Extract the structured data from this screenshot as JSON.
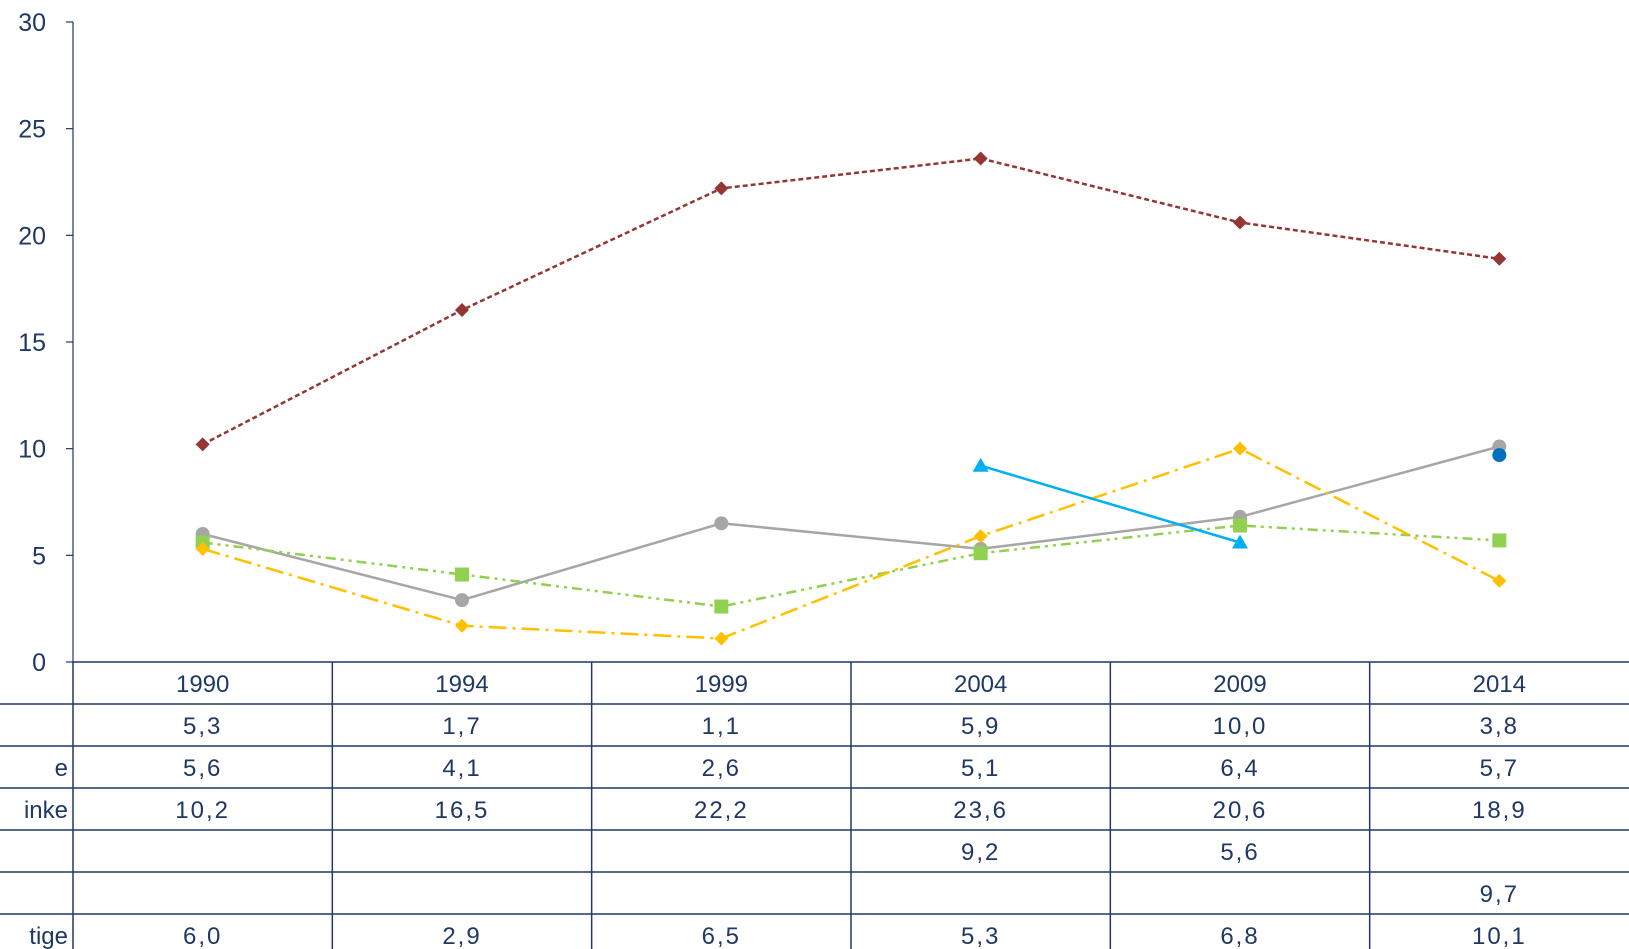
{
  "chart_data": {
    "type": "line",
    "categories": [
      "1990",
      "1994",
      "1999",
      "2004",
      "2009",
      "2014"
    ],
    "ylim": [
      0,
      30
    ],
    "yticks": [
      "0",
      "5",
      "10",
      "15",
      "20",
      "25",
      "30"
    ],
    "grid": false,
    "legend": "data table below chart",
    "series": [
      {
        "label": "",
        "values": [
          5.3,
          1.7,
          1.1,
          5.9,
          10.0,
          3.8
        ],
        "cells": [
          "5,3",
          "1,7",
          "1,1",
          "5,9",
          "10,0",
          "3,8"
        ],
        "color": "#FFC000",
        "marker": "diamond",
        "dash": "long-dash-dot"
      },
      {
        "label": "e",
        "values": [
          5.6,
          4.1,
          2.6,
          5.1,
          6.4,
          5.7
        ],
        "cells": [
          "5,6",
          "4,1",
          "2,6",
          "5,1",
          "6,4",
          "5,7"
        ],
        "color": "#92D050",
        "marker": "square",
        "dash": "dash-dot-dot"
      },
      {
        "label": "inke",
        "values": [
          10.2,
          16.5,
          22.2,
          23.6,
          20.6,
          18.9
        ],
        "cells": [
          "10,2",
          "16,5",
          "22,2",
          "23,6",
          "20,6",
          "18,9"
        ],
        "color": "#943634",
        "marker": "diamond",
        "dash": "dashed"
      },
      {
        "label": "",
        "values": [
          null,
          null,
          null,
          9.2,
          5.6,
          null
        ],
        "cells": [
          "",
          "",
          "",
          "9,2",
          "5,6",
          ""
        ],
        "color": "#00B0F0",
        "marker": "triangle",
        "dash": "solid"
      },
      {
        "label": "",
        "values": [
          null,
          null,
          null,
          null,
          null,
          9.7
        ],
        "cells": [
          "",
          "",
          "",
          "",
          "",
          "9,7"
        ],
        "color": "#0070C0",
        "marker": "circle",
        "dash": "solid"
      },
      {
        "label": "tige",
        "values": [
          6.0,
          2.9,
          6.5,
          5.3,
          6.8,
          10.1
        ],
        "cells": [
          "6,0",
          "2,9",
          "6,5",
          "5,3",
          "6,8",
          "10,1"
        ],
        "color": "#A6A6A6",
        "marker": "circle",
        "dash": "solid"
      }
    ]
  },
  "colors": {
    "axis": "#1F3864",
    "text": "#1F3864"
  }
}
